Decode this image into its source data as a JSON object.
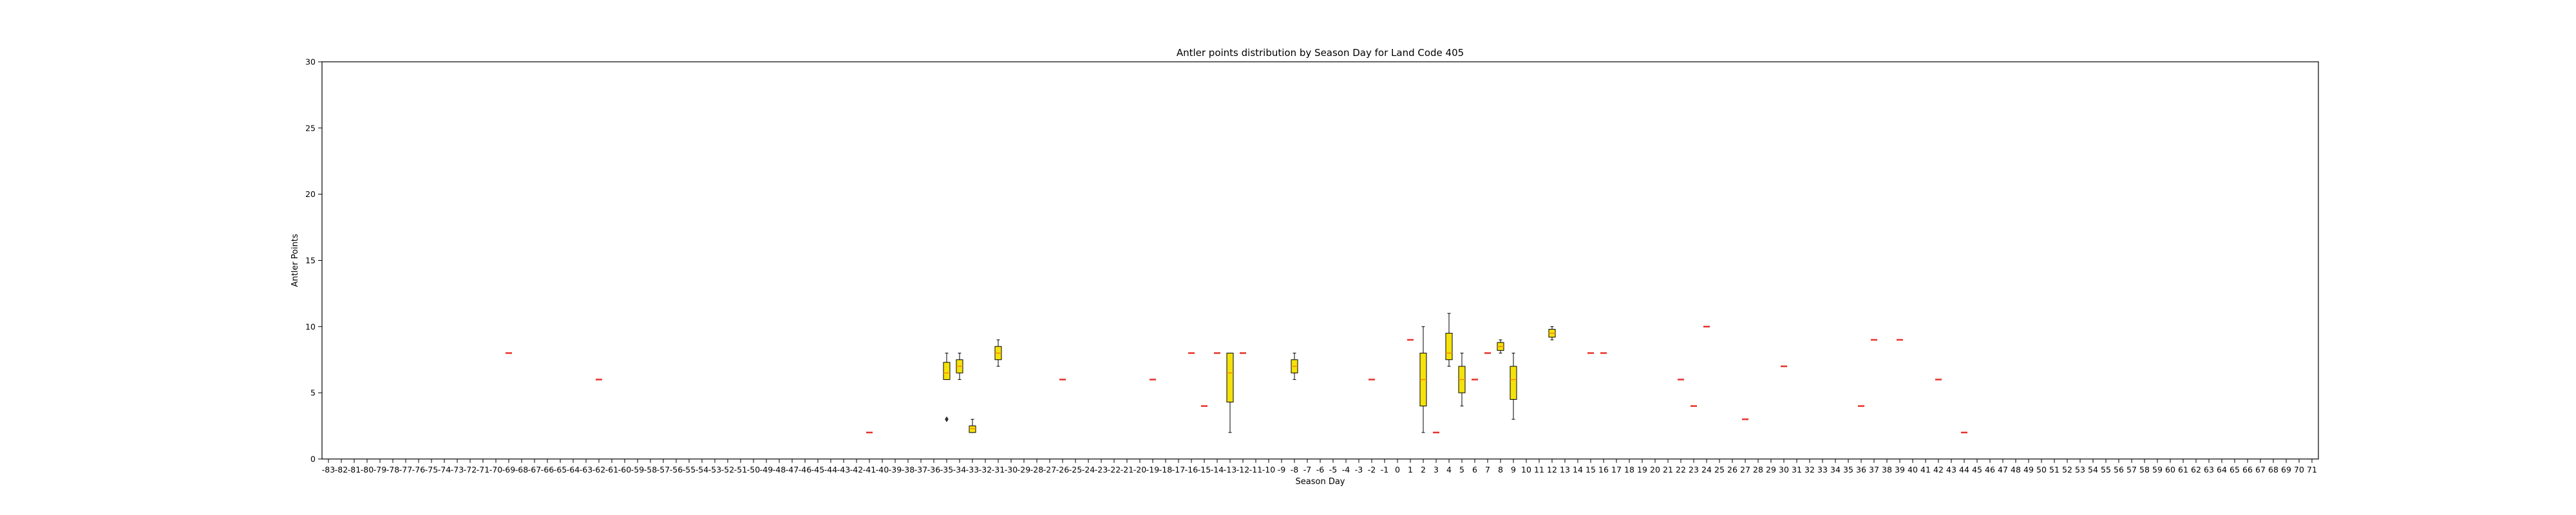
{
  "chart_data": {
    "type": "box",
    "title": "Antler points distribution by Season Day for Land Code 405",
    "xlabel": "Season Day",
    "ylabel": "Antler Points",
    "ylim": [
      0,
      30
    ],
    "yticks": [
      0,
      5,
      10,
      15,
      20,
      25,
      30
    ],
    "x_range": [
      -83,
      71
    ],
    "grid": false,
    "box_color": "#f5e20a",
    "median_color": "#f28a00",
    "single_line_color": "#e8312c",
    "boxes": [
      {
        "day": -69,
        "q1": 8,
        "median": 8,
        "q3": 8,
        "whislo": 8,
        "whishi": 8
      },
      {
        "day": -62,
        "q1": 6,
        "median": 6,
        "q3": 6,
        "whislo": 6,
        "whishi": 6
      },
      {
        "day": -41,
        "q1": 2,
        "median": 2,
        "q3": 2,
        "whislo": 2,
        "whishi": 2
      },
      {
        "day": -35,
        "q1": 6,
        "median": 6.5,
        "q3": 7.3,
        "whislo": 6,
        "whishi": 8,
        "fliers": [
          3
        ]
      },
      {
        "day": -34,
        "q1": 6.5,
        "median": 7,
        "q3": 7.5,
        "whislo": 6,
        "whishi": 8
      },
      {
        "day": -33,
        "q1": 2,
        "median": 2.3,
        "q3": 2.5,
        "whislo": 2,
        "whishi": 3
      },
      {
        "day": -31,
        "q1": 7.5,
        "median": 8,
        "q3": 8.5,
        "whislo": 7,
        "whishi": 9
      },
      {
        "day": -26,
        "q1": 6,
        "median": 6,
        "q3": 6,
        "whislo": 6,
        "whishi": 6
      },
      {
        "day": -19,
        "q1": 6,
        "median": 6,
        "q3": 6,
        "whislo": 6,
        "whishi": 6
      },
      {
        "day": -16,
        "q1": 8,
        "median": 8,
        "q3": 8,
        "whislo": 8,
        "whishi": 8
      },
      {
        "day": -15,
        "q1": 4,
        "median": 4,
        "q3": 4,
        "whislo": 4,
        "whishi": 4
      },
      {
        "day": -14,
        "q1": 8,
        "median": 8,
        "q3": 8,
        "whislo": 8,
        "whishi": 8
      },
      {
        "day": -13,
        "q1": 4.3,
        "median": 6.5,
        "q3": 8,
        "whislo": 2,
        "whishi": 8
      },
      {
        "day": -12,
        "q1": 8,
        "median": 8,
        "q3": 8,
        "whislo": 8,
        "whishi": 8
      },
      {
        "day": -8,
        "q1": 6.5,
        "median": 7,
        "q3": 7.5,
        "whislo": 6,
        "whishi": 8
      },
      {
        "day": -2,
        "q1": 6,
        "median": 6,
        "q3": 6,
        "whislo": 6,
        "whishi": 6
      },
      {
        "day": 1,
        "q1": 9,
        "median": 9,
        "q3": 9,
        "whislo": 9,
        "whishi": 9
      },
      {
        "day": 2,
        "q1": 4,
        "median": 6,
        "q3": 8,
        "whislo": 2,
        "whishi": 10
      },
      {
        "day": 3,
        "q1": 2,
        "median": 2,
        "q3": 2,
        "whislo": 2,
        "whishi": 2
      },
      {
        "day": 4,
        "q1": 7.5,
        "median": 8,
        "q3": 9.5,
        "whislo": 7,
        "whishi": 11
      },
      {
        "day": 5,
        "q1": 5,
        "median": 6,
        "q3": 7,
        "whislo": 4,
        "whishi": 8
      },
      {
        "day": 6,
        "q1": 6,
        "median": 6,
        "q3": 6,
        "whislo": 6,
        "whishi": 6
      },
      {
        "day": 7,
        "q1": 8,
        "median": 8,
        "q3": 8,
        "whislo": 8,
        "whishi": 8
      },
      {
        "day": 8,
        "q1": 8.2,
        "median": 8.5,
        "q3": 8.8,
        "whislo": 8,
        "whishi": 9
      },
      {
        "day": 9,
        "q1": 4.5,
        "median": 6,
        "q3": 7,
        "whislo": 3,
        "whishi": 8
      },
      {
        "day": 12,
        "q1": 9.2,
        "median": 9.5,
        "q3": 9.8,
        "whislo": 9,
        "whishi": 10
      },
      {
        "day": 15,
        "q1": 8,
        "median": 8,
        "q3": 8,
        "whislo": 8,
        "whishi": 8
      },
      {
        "day": 16,
        "q1": 8,
        "median": 8,
        "q3": 8,
        "whislo": 8,
        "whishi": 8
      },
      {
        "day": 22,
        "q1": 6,
        "median": 6,
        "q3": 6,
        "whislo": 6,
        "whishi": 6
      },
      {
        "day": 23,
        "q1": 4,
        "median": 4,
        "q3": 4,
        "whislo": 4,
        "whishi": 4
      },
      {
        "day": 24,
        "q1": 10,
        "median": 10,
        "q3": 10,
        "whislo": 10,
        "whishi": 10
      },
      {
        "day": 27,
        "q1": 3,
        "median": 3,
        "q3": 3,
        "whislo": 3,
        "whishi": 3
      },
      {
        "day": 30,
        "q1": 7,
        "median": 7,
        "q3": 7,
        "whislo": 7,
        "whishi": 7
      },
      {
        "day": 36,
        "q1": 4,
        "median": 4,
        "q3": 4,
        "whislo": 4,
        "whishi": 4
      },
      {
        "day": 37,
        "q1": 9,
        "median": 9,
        "q3": 9,
        "whislo": 9,
        "whishi": 9
      },
      {
        "day": 39,
        "q1": 9,
        "median": 9,
        "q3": 9,
        "whislo": 9,
        "whishi": 9
      },
      {
        "day": 42,
        "q1": 6,
        "median": 6,
        "q3": 6,
        "whislo": 6,
        "whishi": 6
      },
      {
        "day": 44,
        "q1": 2,
        "median": 2,
        "q3": 2,
        "whislo": 2,
        "whishi": 2
      }
    ]
  }
}
